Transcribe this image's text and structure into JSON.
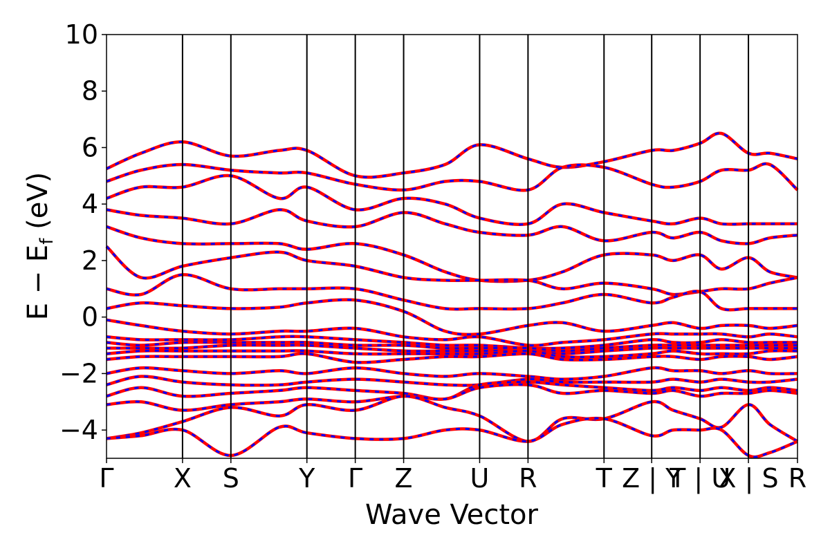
{
  "chart_data": {
    "type": "line",
    "title": "",
    "xlabel": "Wave Vector",
    "ylabel": "E − E_f (eV)",
    "ylabel_main": "E − E",
    "ylabel_sub": "f",
    "ylabel_tail": " (eV)",
    "ylim": [
      -5,
      10
    ],
    "yticks": [
      -4,
      -2,
      0,
      2,
      4,
      6,
      8,
      10
    ],
    "ytick_labels": [
      "−4",
      "−2",
      "0",
      "2",
      "4",
      "6",
      "8",
      "10"
    ],
    "xlim": [
      0,
      1
    ],
    "grid": false,
    "legend": "none",
    "kpoints": [
      {
        "label": "Γ",
        "x": 0.0
      },
      {
        "label": "X",
        "x": 0.11
      },
      {
        "label": "S",
        "x": 0.18
      },
      {
        "label": "Y",
        "x": 0.29
      },
      {
        "label": "Γ",
        "x": 0.36
      },
      {
        "label": "Z",
        "x": 0.43
      },
      {
        "label": "U",
        "x": 0.54
      },
      {
        "label": "R",
        "x": 0.61
      },
      {
        "label": "T",
        "x": 0.72
      },
      {
        "label": "Z | Y",
        "x": 0.789
      },
      {
        "label": "T | U",
        "x": 0.859
      },
      {
        "label": "X | S",
        "x": 0.929
      },
      {
        "label": "R",
        "x": 1.0
      }
    ],
    "series_colors": {
      "line": "#ff0000",
      "dash": "#0000ff"
    },
    "bands": [
      {
        "x": [
          0,
          0.05,
          0.11,
          0.18,
          0.25,
          0.29,
          0.36,
          0.43,
          0.49,
          0.54,
          0.61,
          0.66,
          0.72,
          0.789,
          0.82,
          0.859,
          0.89,
          0.929,
          0.96,
          1.0
        ],
        "y": [
          5.25,
          5.8,
          6.2,
          5.7,
          5.9,
          5.9,
          5.0,
          5.1,
          5.4,
          6.1,
          5.6,
          5.3,
          5.5,
          5.9,
          5.9,
          6.15,
          6.5,
          5.8,
          5.8,
          5.6
        ]
      },
      {
        "x": [
          0,
          0.05,
          0.11,
          0.18,
          0.25,
          0.29,
          0.36,
          0.43,
          0.49,
          0.54,
          0.61,
          0.66,
          0.72,
          0.789,
          0.82,
          0.859,
          0.89,
          0.929,
          0.96,
          1.0
        ],
        "y": [
          4.8,
          5.2,
          5.4,
          5.2,
          5.1,
          5.1,
          4.7,
          4.5,
          4.8,
          4.8,
          4.5,
          5.3,
          5.3,
          4.7,
          4.6,
          4.8,
          5.2,
          5.2,
          5.4,
          4.5
        ]
      },
      {
        "x": [
          0,
          0.05,
          0.11,
          0.18,
          0.25,
          0.29,
          0.36,
          0.43,
          0.49,
          0.54,
          0.61,
          0.66,
          0.72,
          0.789,
          0.82,
          0.859,
          0.89,
          0.929,
          0.96,
          1.0
        ],
        "y": [
          4.2,
          4.6,
          4.6,
          5.0,
          4.2,
          4.6,
          3.8,
          4.2,
          4.0,
          3.5,
          3.3,
          4.0,
          3.7,
          3.4,
          3.3,
          3.5,
          3.3,
          3.3,
          3.3,
          3.3
        ]
      },
      {
        "x": [
          0,
          0.05,
          0.11,
          0.18,
          0.25,
          0.29,
          0.36,
          0.43,
          0.49,
          0.54,
          0.61,
          0.66,
          0.72,
          0.789,
          0.82,
          0.859,
          0.89,
          0.929,
          0.96,
          1.0
        ],
        "y": [
          3.8,
          3.6,
          3.5,
          3.3,
          3.8,
          3.4,
          3.2,
          3.7,
          3.3,
          3.0,
          2.9,
          3.2,
          2.7,
          3.0,
          2.8,
          3.0,
          2.7,
          2.6,
          2.8,
          2.9
        ]
      },
      {
        "x": [
          0,
          0.05,
          0.11,
          0.18,
          0.25,
          0.29,
          0.36,
          0.43,
          0.49,
          0.54,
          0.61,
          0.66,
          0.72,
          0.789,
          0.82,
          0.859,
          0.89,
          0.929,
          0.96,
          1.0
        ],
        "y": [
          3.2,
          2.8,
          2.6,
          2.6,
          2.6,
          2.4,
          2.6,
          2.2,
          1.6,
          1.3,
          1.3,
          1.6,
          2.2,
          2.2,
          2.0,
          2.2,
          1.7,
          2.1,
          1.6,
          1.4
        ]
      },
      {
        "x": [
          0,
          0.05,
          0.11,
          0.18,
          0.25,
          0.29,
          0.36,
          0.43,
          0.49,
          0.54,
          0.61,
          0.66,
          0.72,
          0.789,
          0.82,
          0.859,
          0.89,
          0.929,
          0.96,
          1.0
        ],
        "y": [
          2.5,
          1.4,
          1.8,
          2.1,
          2.3,
          2.0,
          1.8,
          1.4,
          1.3,
          1.3,
          1.3,
          1.0,
          1.2,
          1.0,
          0.8,
          0.9,
          1.0,
          1.0,
          1.2,
          1.4
        ]
      },
      {
        "x": [
          0,
          0.05,
          0.11,
          0.18,
          0.25,
          0.29,
          0.36,
          0.43,
          0.49,
          0.54,
          0.61,
          0.66,
          0.72,
          0.789,
          0.82,
          0.859,
          0.89,
          0.929,
          0.96,
          1.0
        ],
        "y": [
          1.0,
          0.8,
          1.5,
          1.0,
          1.0,
          1.0,
          1.0,
          0.6,
          0.3,
          0.3,
          0.3,
          0.5,
          0.8,
          0.5,
          0.7,
          0.9,
          0.3,
          0.3,
          0.3,
          0.3
        ]
      },
      {
        "x": [
          0,
          0.05,
          0.11,
          0.18,
          0.25,
          0.29,
          0.36,
          0.43,
          0.49,
          0.54,
          0.61,
          0.66,
          0.72,
          0.789,
          0.82,
          0.859,
          0.89,
          0.929,
          0.96,
          1.0
        ],
        "y": [
          0.3,
          0.5,
          0.4,
          0.3,
          0.35,
          0.5,
          0.6,
          0.2,
          -0.5,
          -0.6,
          -0.3,
          -0.2,
          -0.5,
          -0.3,
          -0.2,
          -0.4,
          -0.3,
          -0.3,
          -0.4,
          -0.3
        ]
      },
      {
        "x": [
          0,
          0.05,
          0.11,
          0.18,
          0.25,
          0.29,
          0.36,
          0.43,
          0.49,
          0.54,
          0.61,
          0.66,
          0.72,
          0.789,
          0.82,
          0.859,
          0.89,
          0.929,
          0.96,
          1.0
        ],
        "y": [
          -0.1,
          -0.3,
          -0.5,
          -0.6,
          -0.5,
          -0.5,
          -0.4,
          -0.7,
          -0.8,
          -0.7,
          -1.0,
          -0.9,
          -0.8,
          -0.6,
          -0.6,
          -0.6,
          -0.6,
          -0.7,
          -0.6,
          -0.7
        ]
      },
      {
        "x": [
          0,
          0.05,
          0.11,
          0.18,
          0.25,
          0.29,
          0.36,
          0.43,
          0.49,
          0.54,
          0.61,
          0.66,
          0.72,
          0.789,
          0.82,
          0.859,
          0.89,
          0.929,
          0.96,
          1.0
        ],
        "y": [
          -0.7,
          -0.8,
          -0.8,
          -0.8,
          -0.7,
          -0.7,
          -0.8,
          -0.9,
          -1.0,
          -1.0,
          -1.1,
          -1.1,
          -1.0,
          -0.8,
          -0.9,
          -0.9,
          -0.8,
          -0.9,
          -0.9,
          -0.9
        ]
      },
      {
        "x": [
          0,
          0.05,
          0.11,
          0.18,
          0.25,
          0.29,
          0.36,
          0.43,
          0.49,
          0.54,
          0.61,
          0.66,
          0.72,
          0.789,
          0.82,
          0.859,
          0.89,
          0.929,
          0.96,
          1.0
        ],
        "y": [
          -0.9,
          -1.0,
          -0.9,
          -0.9,
          -0.9,
          -0.9,
          -1.0,
          -1.0,
          -1.1,
          -1.1,
          -1.1,
          -1.2,
          -1.1,
          -1.0,
          -1.0,
          -1.0,
          -1.0,
          -1.0,
          -1.0,
          -1.0
        ]
      },
      {
        "x": [
          0,
          0.05,
          0.11,
          0.18,
          0.25,
          0.29,
          0.36,
          0.43,
          0.49,
          0.54,
          0.61,
          0.66,
          0.72,
          0.789,
          0.82,
          0.859,
          0.89,
          0.929,
          0.96,
          1.0
        ],
        "y": [
          -1.1,
          -1.1,
          -1.1,
          -1.0,
          -1.0,
          -1.0,
          -1.1,
          -1.2,
          -1.2,
          -1.2,
          -1.2,
          -1.3,
          -1.2,
          -1.1,
          -1.1,
          -1.1,
          -1.1,
          -1.1,
          -1.1,
          -1.1
        ]
      },
      {
        "x": [
          0,
          0.05,
          0.11,
          0.18,
          0.25,
          0.29,
          0.36,
          0.43,
          0.49,
          0.54,
          0.61,
          0.66,
          0.72,
          0.789,
          0.82,
          0.859,
          0.89,
          0.929,
          0.96,
          1.0
        ],
        "y": [
          -1.3,
          -1.2,
          -1.2,
          -1.2,
          -1.2,
          -1.2,
          -1.3,
          -1.3,
          -1.3,
          -1.3,
          -1.2,
          -1.4,
          -1.4,
          -1.3,
          -1.2,
          -1.3,
          -1.3,
          -1.3,
          -1.2,
          -1.2
        ]
      },
      {
        "x": [
          0,
          0.05,
          0.11,
          0.18,
          0.25,
          0.29,
          0.36,
          0.43,
          0.49,
          0.54,
          0.61,
          0.66,
          0.72,
          0.789,
          0.82,
          0.859,
          0.89,
          0.929,
          0.96,
          1.0
        ],
        "y": [
          -1.5,
          -1.4,
          -1.4,
          -1.4,
          -1.4,
          -1.3,
          -1.6,
          -1.5,
          -1.4,
          -1.4,
          -1.3,
          -1.5,
          -1.5,
          -1.4,
          -1.4,
          -1.5,
          -1.4,
          -1.4,
          -1.5,
          -1.4
        ]
      },
      {
        "x": [
          0,
          0.05,
          0.11,
          0.18,
          0.25,
          0.29,
          0.36,
          0.43,
          0.49,
          0.54,
          0.61,
          0.66,
          0.72,
          0.789,
          0.82,
          0.859,
          0.89,
          0.929,
          0.96,
          1.0
        ],
        "y": [
          -2.0,
          -1.8,
          -1.9,
          -2.0,
          -1.9,
          -2.0,
          -1.8,
          -2.0,
          -2.1,
          -2.0,
          -2.1,
          -2.2,
          -2.1,
          -1.8,
          -1.9,
          -1.9,
          -2.0,
          -1.9,
          -2.0,
          -2.0
        ]
      },
      {
        "x": [
          0,
          0.05,
          0.11,
          0.18,
          0.25,
          0.29,
          0.36,
          0.43,
          0.49,
          0.54,
          0.61,
          0.66,
          0.72,
          0.789,
          0.82,
          0.859,
          0.89,
          0.929,
          0.96,
          1.0
        ],
        "y": [
          -2.4,
          -2.1,
          -2.3,
          -2.4,
          -2.4,
          -2.3,
          -2.2,
          -2.3,
          -2.4,
          -2.4,
          -2.2,
          -2.3,
          -2.3,
          -2.3,
          -2.2,
          -2.3,
          -2.2,
          -2.3,
          -2.3,
          -2.2
        ]
      },
      {
        "x": [
          0,
          0.05,
          0.11,
          0.18,
          0.25,
          0.29,
          0.36,
          0.43,
          0.49,
          0.54,
          0.61,
          0.66,
          0.72,
          0.789,
          0.82,
          0.859,
          0.89,
          0.929,
          0.96,
          1.0
        ],
        "y": [
          -2.8,
          -2.5,
          -2.8,
          -2.7,
          -2.6,
          -2.5,
          -2.6,
          -2.7,
          -2.9,
          -2.4,
          -2.3,
          -2.4,
          -2.5,
          -2.6,
          -2.5,
          -2.6,
          -2.5,
          -2.6,
          -2.5,
          -2.6
        ]
      },
      {
        "x": [
          0,
          0.05,
          0.11,
          0.18,
          0.25,
          0.29,
          0.36,
          0.43,
          0.49,
          0.54,
          0.61,
          0.66,
          0.72,
          0.789,
          0.82,
          0.859,
          0.89,
          0.929,
          0.96,
          1.0
        ],
        "y": [
          -3.1,
          -3.0,
          -3.3,
          -3.1,
          -3.0,
          -2.9,
          -3.0,
          -2.8,
          -2.9,
          -2.5,
          -2.4,
          -2.7,
          -2.6,
          -2.7,
          -2.6,
          -2.8,
          -2.7,
          -2.7,
          -2.6,
          -2.7
        ]
      },
      {
        "x": [
          0,
          0.05,
          0.11,
          0.18,
          0.25,
          0.29,
          0.36,
          0.43,
          0.49,
          0.54,
          0.61,
          0.66,
          0.72,
          0.789,
          0.82,
          0.859,
          0.89,
          0.929,
          0.96,
          1.0
        ],
        "y": [
          -4.3,
          -4.1,
          -3.7,
          -3.2,
          -3.5,
          -3.1,
          -3.3,
          -2.8,
          -3.2,
          -3.5,
          -4.4,
          -3.6,
          -3.6,
          -3.0,
          -3.3,
          -3.6,
          -3.9,
          -3.1,
          -3.8,
          -4.4
        ]
      },
      {
        "x": [
          0,
          0.05,
          0.11,
          0.18,
          0.25,
          0.29,
          0.36,
          0.43,
          0.49,
          0.54,
          0.61,
          0.66,
          0.72,
          0.789,
          0.82,
          0.859,
          0.89,
          0.929,
          0.96,
          1.0
        ],
        "y": [
          -4.3,
          -4.2,
          -4.0,
          -4.9,
          -3.9,
          -4.1,
          -4.3,
          -4.3,
          -4.0,
          -4.0,
          -4.4,
          -3.8,
          -3.6,
          -4.2,
          -4.0,
          -4.0,
          -4.0,
          -4.9,
          -4.8,
          -4.4
        ]
      }
    ]
  }
}
